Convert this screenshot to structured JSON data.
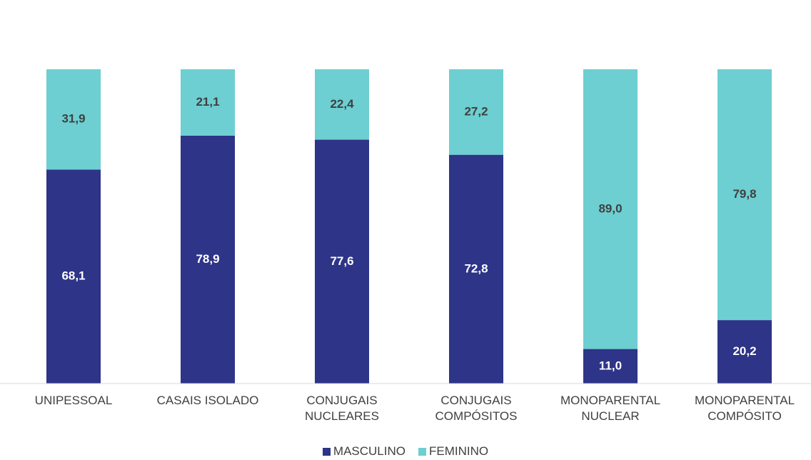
{
  "chart_data": {
    "type": "stacked-bar",
    "categories": [
      "UNIPESSOAL",
      "CASAIS ISOLADO",
      "CONJUGAIS\nNUCLEARES",
      "CONJUGAIS\nCOMPÓSITOS",
      "MONOPARENTAL\nNUCLEAR",
      "MONOPARENTAL\nCOMPÓSITO"
    ],
    "series": [
      {
        "name": "MASCULINO",
        "color": "#2e3487",
        "values": [
          68.1,
          78.9,
          77.6,
          72.8,
          11.0,
          20.2
        ],
        "value_labels": [
          "68,1",
          "78,9",
          "77,6",
          "72,8",
          "11,0",
          "20,2"
        ]
      },
      {
        "name": "FEMININO",
        "color": "#6dcfd1",
        "values": [
          31.9,
          21.1,
          22.4,
          27.2,
          89.0,
          79.8
        ],
        "value_labels": [
          "31,9",
          "21,1",
          "22,4",
          "27,2",
          "89,0",
          "79,8"
        ]
      }
    ],
    "ylim": [
      0,
      100
    ],
    "legend": "bottom"
  }
}
